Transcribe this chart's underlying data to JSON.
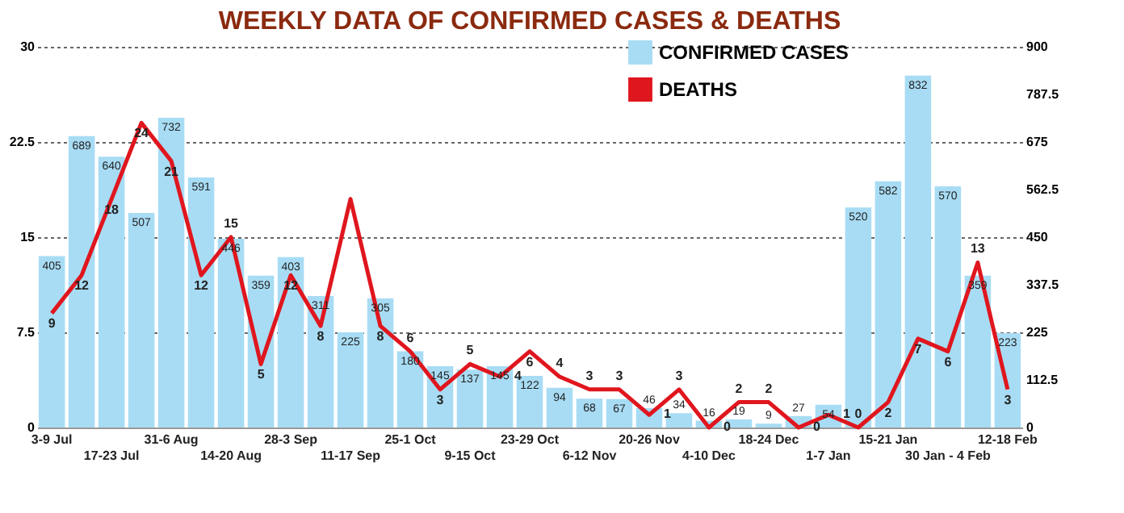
{
  "chart_data": {
    "type": "bar",
    "title": "WEEKLY DATA OF CONFIRMED CASES & DEATHS",
    "categories": [
      "3-9 Jul",
      null,
      "17-23 Jul",
      null,
      "31-6 Aug",
      null,
      "14-20 Aug",
      null,
      "28-3 Sep",
      null,
      "11-17 Sep",
      null,
      "25-1 Oct",
      null,
      "9-15 Oct",
      null,
      "23-29 Oct",
      null,
      "6-12 Nov",
      null,
      "20-26 Nov",
      null,
      "4-10 Dec",
      null,
      "18-24 Dec",
      null,
      "1-7 Jan",
      null,
      "15-21 Jan",
      null,
      "30 Jan - 4 Feb",
      null,
      "12-18 Feb"
    ],
    "series": [
      {
        "name": "CONFIRMED CASES",
        "type": "bar",
        "axis": "y2",
        "color": "#a8dcf4",
        "values": [
          405,
          689,
          640,
          507,
          732,
          591,
          446,
          359,
          403,
          311,
          225,
          305,
          180,
          145,
          137,
          145,
          122,
          94,
          68,
          67,
          46,
          34,
          16,
          19,
          9,
          27,
          54,
          520,
          582,
          832,
          570,
          359,
          223
        ],
        "value_labels": [
          "405",
          "689",
          "640",
          "507",
          "732",
          "591",
          "446",
          "359",
          "403",
          "311",
          "225",
          "305",
          "180",
          "145",
          "137",
          "145",
          "122",
          "94",
          "68",
          "67",
          "46",
          "34",
          "16",
          "19",
          "9",
          "27",
          "54",
          "520",
          "582",
          "832",
          "570",
          "359",
          "223"
        ]
      },
      {
        "name": "DEATHS",
        "type": "line",
        "axis": "y",
        "color": "#e0161e",
        "values": [
          9,
          12,
          18,
          24,
          21,
          12,
          15,
          5,
          12,
          8,
          18,
          8,
          6,
          3,
          5,
          4,
          6,
          4,
          3,
          3,
          1,
          3,
          0,
          2,
          2,
          0,
          1,
          0,
          2,
          7,
          6,
          13,
          3
        ],
        "value_labels": [
          "9",
          "12",
          "18",
          "24",
          "21",
          "12",
          "15",
          "5",
          "12",
          "8",
          null,
          "8",
          "6",
          "3",
          "5",
          "4",
          "6",
          "4",
          "3",
          "3",
          "1",
          "3",
          "0",
          "2",
          "2",
          "0",
          "1",
          "0",
          "2",
          "7",
          "6",
          "13",
          "3"
        ]
      }
    ],
    "ylim": [
      0,
      30
    ],
    "yticks": [
      0,
      7.5,
      15,
      22.5,
      30
    ],
    "y2lim": [
      0,
      900
    ],
    "y2ticks": [
      0,
      112.5,
      225,
      337.5,
      450,
      562.5,
      675,
      787.5,
      900
    ],
    "grid": "y",
    "legend": "top right"
  }
}
